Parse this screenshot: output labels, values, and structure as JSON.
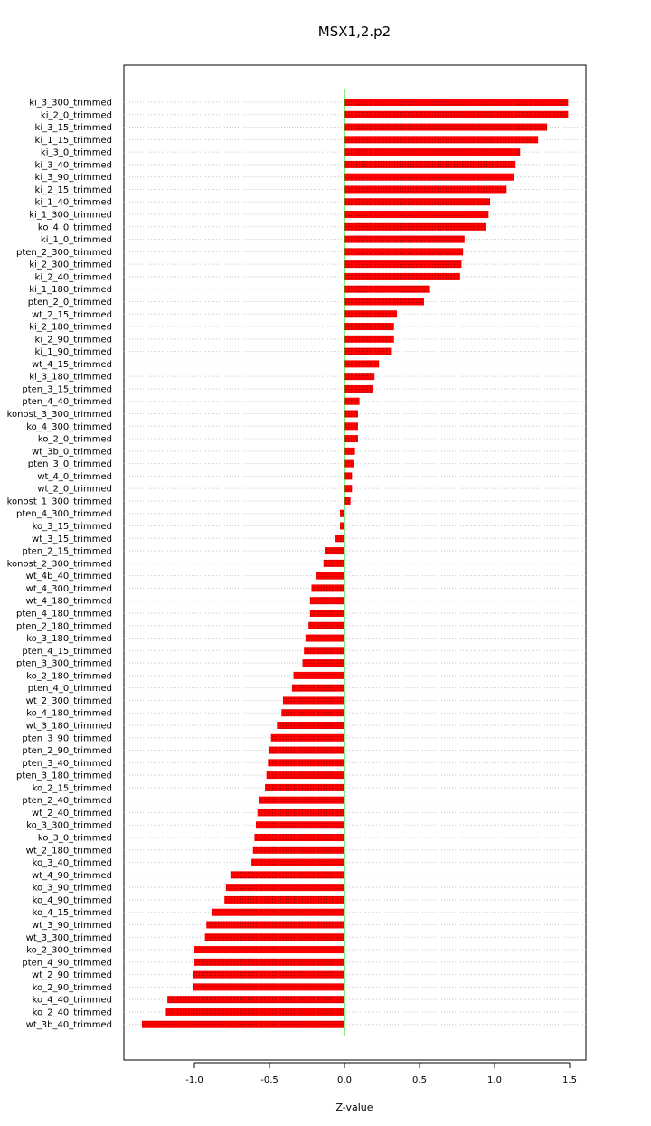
{
  "chart_data": {
    "type": "bar",
    "orientation": "horizontal",
    "title": "MSX1,2.p2",
    "xlabel": "Z-value",
    "ylabel": "",
    "xlim": [
      -1.47,
      1.6
    ],
    "xticks": [
      -1.0,
      -0.5,
      0.0,
      0.5,
      1.0,
      1.5
    ],
    "xtick_labels": [
      "-1.0",
      "-0.5",
      "0.0",
      "0.5",
      "1.0",
      "1.5"
    ],
    "grid": "horizontal dotted lines",
    "bar_color": "#ff0000",
    "bar_texture_color": "#990000",
    "zero_line_color": "#00dd00",
    "categories": [
      "ki_3_300_trimmed",
      "ki_2_0_trimmed",
      "ki_3_15_trimmed",
      "ki_1_15_trimmed",
      "ki_3_0_trimmed",
      "ki_3_40_trimmed",
      "ki_3_90_trimmed",
      "ki_2_15_trimmed",
      "ki_1_40_trimmed",
      "ki_1_300_trimmed",
      "ko_4_0_trimmed",
      "ki_1_0_trimmed",
      "pten_2_300_trimmed",
      "ki_2_300_trimmed",
      "ki_2_40_trimmed",
      "ki_1_180_trimmed",
      "pten_2_0_trimmed",
      "wt_2_15_trimmed",
      "ki_2_180_trimmed",
      "ki_2_90_trimmed",
      "ki_1_90_trimmed",
      "wt_4_15_trimmed",
      "ki_3_180_trimmed",
      "pten_3_15_trimmed",
      "pten_4_40_trimmed",
      "konost_3_300_trimmed",
      "ko_4_300_trimmed",
      "ko_2_0_trimmed",
      "wt_3b_0_trimmed",
      "pten_3_0_trimmed",
      "wt_4_0_trimmed",
      "wt_2_0_trimmed",
      "konost_1_300_trimmed",
      "pten_4_300_trimmed",
      "ko_3_15_trimmed",
      "wt_3_15_trimmed",
      "pten_2_15_trimmed",
      "konost_2_300_trimmed",
      "wt_4b_40_trimmed",
      "wt_4_300_trimmed",
      "wt_4_180_trimmed",
      "pten_4_180_trimmed",
      "pten_2_180_trimmed",
      "ko_3_180_trimmed",
      "pten_4_15_trimmed",
      "pten_3_300_trimmed",
      "ko_2_180_trimmed",
      "pten_4_0_trimmed",
      "wt_2_300_trimmed",
      "ko_4_180_trimmed",
      "wt_3_180_trimmed",
      "pten_3_90_trimmed",
      "pten_2_90_trimmed",
      "pten_3_40_trimmed",
      "pten_3_180_trimmed",
      "ko_2_15_trimmed",
      "pten_2_40_trimmed",
      "wt_2_40_trimmed",
      "ko_3_300_trimmed",
      "ko_3_0_trimmed",
      "wt_2_180_trimmed",
      "ko_3_40_trimmed",
      "wt_4_90_trimmed",
      "ko_3_90_trimmed",
      "ko_4_90_trimmed",
      "ko_4_15_trimmed",
      "wt_3_90_trimmed",
      "wt_3_300_trimmed",
      "ko_2_300_trimmed",
      "pten_4_90_trimmed",
      "wt_2_90_trimmed",
      "ko_2_90_trimmed",
      "ko_4_40_trimmed",
      "ko_2_40_trimmed",
      "wt_3b_40_trimmed"
    ],
    "values": [
      1.49,
      1.49,
      1.35,
      1.29,
      1.17,
      1.14,
      1.13,
      1.08,
      0.97,
      0.96,
      0.94,
      0.8,
      0.79,
      0.78,
      0.77,
      0.57,
      0.53,
      0.35,
      0.33,
      0.33,
      0.31,
      0.23,
      0.2,
      0.19,
      0.1,
      0.09,
      0.09,
      0.09,
      0.07,
      0.06,
      0.05,
      0.05,
      0.04,
      -0.03,
      -0.03,
      -0.06,
      -0.13,
      -0.14,
      -0.19,
      -0.22,
      -0.23,
      -0.23,
      -0.24,
      -0.26,
      -0.27,
      -0.28,
      -0.34,
      -0.35,
      -0.41,
      -0.42,
      -0.45,
      -0.49,
      -0.5,
      -0.51,
      -0.52,
      -0.53,
      -0.57,
      -0.58,
      -0.59,
      -0.6,
      -0.61,
      -0.62,
      -0.76,
      -0.79,
      -0.8,
      -0.88,
      -0.92,
      -0.93,
      -1.0,
      -1.0,
      -1.01,
      -1.01,
      -1.18,
      -1.19,
      -1.35
    ]
  }
}
